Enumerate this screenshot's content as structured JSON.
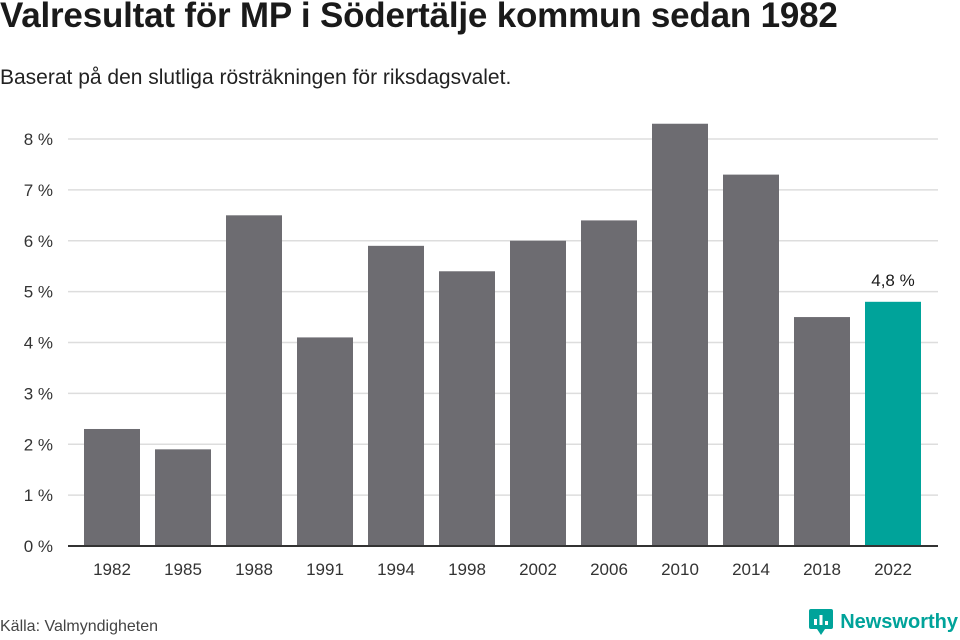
{
  "header": {
    "title": "Valresultat för MP i Södertälje kommun sedan 1982",
    "subtitle": "Baserat på den slutliga rösträkningen för riksdagsvalet."
  },
  "footer": {
    "source": "Källa: Valmyndigheten",
    "brand": "Newsworthy"
  },
  "colors": {
    "bar": "#6d6c71",
    "highlight": "#00a39a",
    "grid": "#dddddd",
    "axis": "#333333"
  },
  "chart_data": {
    "type": "bar",
    "title": "Valresultat för MP i Södertälje kommun sedan 1982",
    "subtitle": "Baserat på den slutliga rösträkningen för riksdagsvalet.",
    "xlabel": "",
    "ylabel": "",
    "categories": [
      "1982",
      "1985",
      "1988",
      "1991",
      "1994",
      "1998",
      "2002",
      "2006",
      "2010",
      "2014",
      "2018",
      "2022"
    ],
    "values": [
      2.3,
      1.9,
      6.5,
      4.1,
      5.9,
      5.4,
      6.0,
      6.4,
      8.3,
      7.3,
      4.5,
      4.8
    ],
    "ylim": [
      0,
      8
    ],
    "yticks": [
      0,
      1,
      2,
      3,
      4,
      5,
      6,
      7,
      8
    ],
    "ytick_labels": [
      "0 %",
      "1 %",
      "2 %",
      "3 %",
      "4 %",
      "5 %",
      "6 %",
      "7 %",
      "8 %"
    ],
    "grid": true,
    "highlight_index": 11,
    "annotations": [
      {
        "category": "2022",
        "text": "4,8 %"
      }
    ]
  }
}
